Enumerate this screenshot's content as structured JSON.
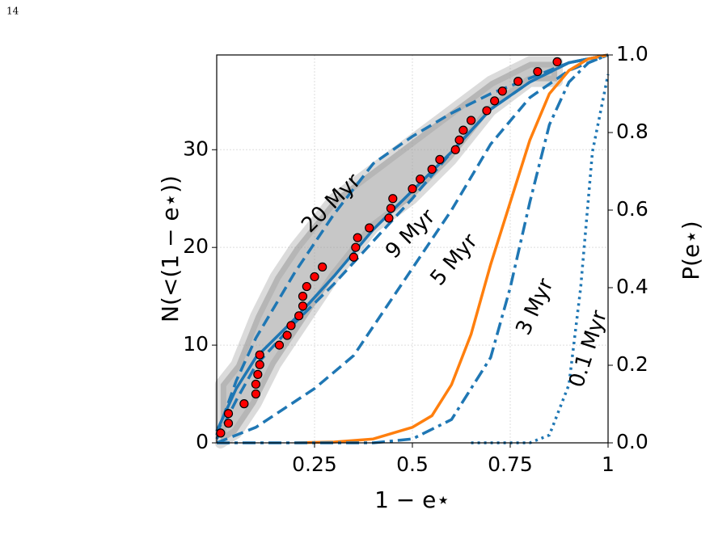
{
  "page_number": "14",
  "chart_data": {
    "type": "line",
    "xlabel": "1 − e⋆",
    "ylabel": "N(<(1 − e⋆))",
    "y2label": "P(e⋆)",
    "xlim": [
      0,
      1
    ],
    "ylim": [
      0,
      39.7
    ],
    "y2lim": [
      0,
      1
    ],
    "xticks": [
      0.25,
      0.5,
      0.75,
      1
    ],
    "yticks": [
      0,
      10,
      20,
      30
    ],
    "y2ticks": [
      {
        "value": 0,
        "label": "0.0"
      },
      {
        "value": 0.2,
        "label": "0.2"
      },
      {
        "value": 0.4,
        "label": "0.4"
      },
      {
        "value": 0.6,
        "label": "0.6"
      },
      {
        "value": 0.8,
        "label": "0.8"
      },
      {
        "value": 1,
        "label": "1.0"
      }
    ],
    "grid": true,
    "band": {
      "color": "#999999",
      "x": [
        0.01,
        0.05,
        0.1,
        0.15,
        0.2,
        0.3,
        0.4,
        0.5,
        0.6,
        0.7,
        0.8,
        0.87
      ],
      "low": [
        0,
        1,
        4,
        8,
        11,
        17,
        22,
        25,
        29,
        34,
        37,
        37
      ],
      "high": [
        6,
        8,
        13,
        17,
        20,
        25,
        28,
        31,
        34,
        37,
        39,
        39
      ]
    },
    "points": {
      "color": "#ff0000",
      "x": [
        0.01,
        0.03,
        0.03,
        0.07,
        0.1,
        0.1,
        0.105,
        0.11,
        0.11,
        0.16,
        0.18,
        0.19,
        0.21,
        0.22,
        0.22,
        0.23,
        0.25,
        0.27,
        0.35,
        0.355,
        0.36,
        0.39,
        0.44,
        0.445,
        0.45,
        0.5,
        0.52,
        0.55,
        0.57,
        0.61,
        0.62,
        0.63,
        0.65,
        0.69,
        0.71,
        0.73,
        0.77,
        0.82,
        0.87
      ],
      "values": [
        1,
        2,
        3,
        4,
        5,
        6,
        7,
        8,
        9,
        10,
        11,
        12,
        13,
        14,
        15,
        16,
        17,
        18,
        19,
        20,
        21,
        22,
        23,
        24,
        25,
        26,
        27,
        28,
        29,
        30,
        31,
        32,
        33,
        34,
        35,
        36,
        37,
        38,
        39
      ]
    },
    "series": [
      {
        "color": "#1f77b4",
        "dash": "solid",
        "axis": "y2",
        "x": [
          0,
          0.05,
          0.1,
          0.2,
          0.3,
          0.4,
          0.5,
          0.6,
          0.7,
          0.8,
          0.9,
          1
        ],
        "values": [
          0.03,
          0.14,
          0.22,
          0.32,
          0.43,
          0.55,
          0.65,
          0.75,
          0.86,
          0.93,
          0.98,
          1
        ]
      },
      {
        "color": "#1f77b4",
        "dash": "dashed",
        "axis": "y2",
        "x": [
          0,
          0.05,
          0.1,
          0.2,
          0.3,
          0.4,
          0.5,
          0.6,
          0.7,
          0.8,
          0.9,
          1
        ],
        "values": [
          0.02,
          0.16,
          0.27,
          0.44,
          0.59,
          0.72,
          0.79,
          0.85,
          0.9,
          0.94,
          0.98,
          1
        ]
      },
      {
        "color": "#1f77b4",
        "dash": "dashed",
        "axis": "y2",
        "x": [
          0,
          0.05,
          0.1,
          0.2,
          0.3,
          0.4,
          0.5,
          0.6,
          0.7,
          0.8,
          0.9,
          1
        ],
        "values": [
          0.01,
          0.11,
          0.2,
          0.31,
          0.41,
          0.52,
          0.63,
          0.75,
          0.86,
          0.93,
          0.98,
          1
        ]
      },
      {
        "color": "#1f77b4",
        "dash": "dashed",
        "axis": "y2",
        "x": [
          0,
          0.1,
          0.25,
          0.35,
          0.5,
          0.6,
          0.7,
          0.8,
          0.9,
          1
        ],
        "values": [
          0,
          0.04,
          0.14,
          0.225,
          0.45,
          0.6,
          0.77,
          0.89,
          0.96,
          1
        ]
      },
      {
        "color": "#ff7f0e",
        "dash": "solid",
        "axis": "y2",
        "x": [
          0.2,
          0.3,
          0.4,
          0.5,
          0.55,
          0.6,
          0.65,
          0.7,
          0.75,
          0.8,
          0.85,
          0.9,
          0.95,
          1
        ],
        "values": [
          0,
          0.002,
          0.01,
          0.04,
          0.07,
          0.15,
          0.28,
          0.46,
          0.62,
          0.78,
          0.9,
          0.96,
          0.99,
          1
        ]
      },
      {
        "color": "#1f77b4",
        "dash": "dashdot",
        "axis": "y2",
        "x": [
          0,
          0.4,
          0.5,
          0.6,
          0.7,
          0.75,
          0.8,
          0.85,
          0.9,
          0.95,
          1
        ],
        "values": [
          0,
          0,
          0.01,
          0.06,
          0.22,
          0.4,
          0.62,
          0.82,
          0.93,
          0.98,
          1
        ]
      },
      {
        "color": "#1f77b4",
        "dash": "dotted",
        "axis": "y2",
        "x": [
          0.65,
          0.8,
          0.85,
          0.9,
          0.93,
          0.96,
          1
        ],
        "values": [
          0,
          0,
          0.02,
          0.15,
          0.4,
          0.75,
          0.95
        ]
      }
    ],
    "annotations": [
      "20 Myr",
      "9 Myr",
      "5 Myr",
      "3 Myr",
      "0.1 Myr"
    ]
  }
}
